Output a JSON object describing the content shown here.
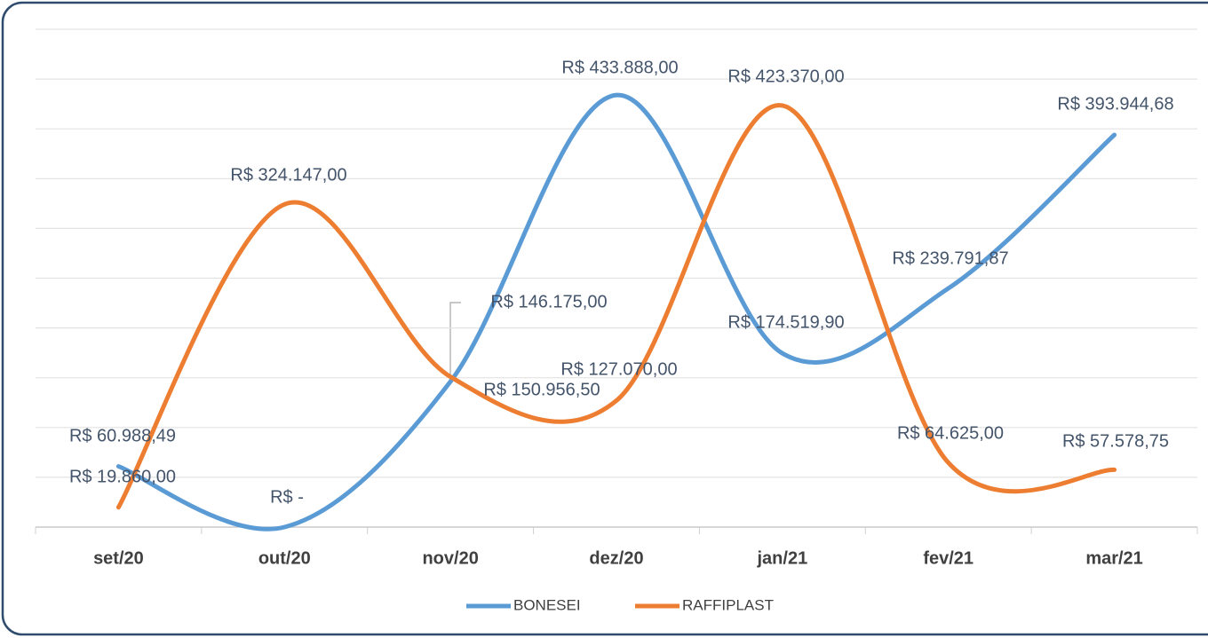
{
  "chart_data": {
    "type": "line",
    "categories": [
      "set/20",
      "out/20",
      "nov/20",
      "dez/20",
      "jan/21",
      "fev/21",
      "mar/21"
    ],
    "series": [
      {
        "name": "BONESEI",
        "color": "#5b9bd5",
        "values": [
          60988.49,
          0,
          146175,
          433888,
          174519.9,
          239791.87,
          393944.68
        ],
        "value_labels": [
          "R$ 60.988,49",
          "R$ -",
          "R$ 146.175,00",
          "R$ 433.888,00",
          "R$ 174.519,90",
          "R$ 239.791,87",
          "R$ 393.944,68"
        ]
      },
      {
        "name": "RAFFIPLAST",
        "color": "#ed7d31",
        "values": [
          19860,
          324147,
          150956.5,
          127070,
          423370,
          64625,
          57578.75
        ],
        "value_labels": [
          "R$ 19.860,00",
          "R$ 324.147,00",
          "R$ 150.956,50",
          "R$ 127.070,00",
          "R$ 423.370,00",
          "R$ 64.625,00",
          "R$ 57.578,75"
        ]
      }
    ],
    "ylim": [
      0,
      500000
    ],
    "yticks": [
      0,
      50000,
      100000,
      150000,
      200000,
      250000,
      300000,
      350000,
      400000,
      450000,
      500000
    ],
    "grid": true,
    "smooth": true,
    "legend": "bottom"
  }
}
